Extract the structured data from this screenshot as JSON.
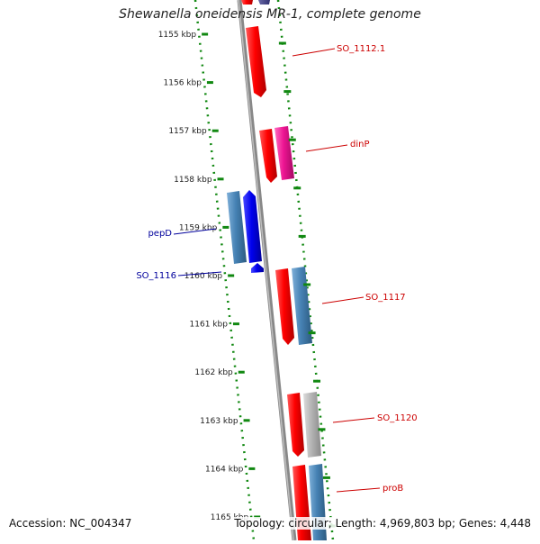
{
  "title": "Shewanella oneidensis MR-1, complete genome",
  "accession_text": "Accession: NC_004347",
  "summary_text": "Topology: circular; Length: 4,969,803 bp; Genes: 4,448",
  "ticks": [
    {
      "label": "1155 kbp"
    },
    {
      "label": "1156 kbp"
    },
    {
      "label": "1157 kbp"
    },
    {
      "label": "1158 kbp"
    },
    {
      "label": "1159 kbp"
    },
    {
      "label": "1160 kbp"
    },
    {
      "label": "1161 kbp"
    },
    {
      "label": "1162 kbp"
    },
    {
      "label": "1163 kbp"
    },
    {
      "label": "1164 kbp"
    },
    {
      "label": "1165 kbp"
    }
  ],
  "gene_labels": [
    {
      "name": "SO_1112.1",
      "color": "#cc0000"
    },
    {
      "name": "dinP",
      "color": "#cc0000"
    },
    {
      "name": "pepD",
      "color": "#00009c"
    },
    {
      "name": "SO_1116",
      "color": "#00009c"
    },
    {
      "name": "SO_1117",
      "color": "#cc0000"
    },
    {
      "name": "SO_1120",
      "color": "#cc0000"
    },
    {
      "name": "proB",
      "color": "#cc0000"
    }
  ],
  "colors": {
    "red_gene": "#ff0000",
    "magenta_gene": "#ee1493",
    "blue_gene": "#0000ee",
    "steel_gene": "#4682b4",
    "gray_gene": "#b4b4b4",
    "dotted_ring": "#118811",
    "backbone": "#888888"
  }
}
